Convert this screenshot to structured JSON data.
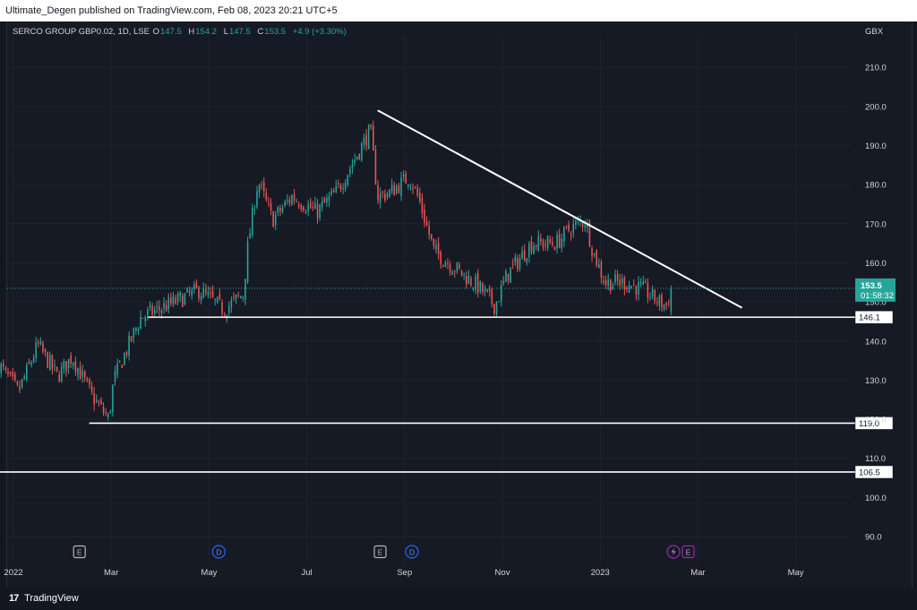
{
  "header": {
    "publish_text": "Ultimate_Degen published on TradingView.com, Feb 08, 2023 20:21 UTC+5"
  },
  "legend": {
    "symbol": "SERCO GROUP GBP0.02, 1D, LSE",
    "open_label": "O",
    "open": "147.5",
    "high_label": "H",
    "high": "154.2",
    "low_label": "L",
    "low": "147.5",
    "close_label": "C",
    "close": "153.5",
    "change": "+4.9 (+3.30%)"
  },
  "currency": "GBX",
  "footer": {
    "logo": "17",
    "brand": "TradingView"
  },
  "colors": {
    "up": "#26a69a",
    "down": "#ef5350",
    "background": "#161a25",
    "line": "#ffffff"
  },
  "chart_data": {
    "type": "candlestick",
    "symbol": "SERCO GROUP GBP0.02",
    "interval": "1D",
    "exchange": "LSE",
    "currency": "GBX",
    "ylim": [
      86,
      218
    ],
    "y_ticks": [
      "90.0",
      "100.0",
      "110.0",
      "120.0",
      "130.0",
      "140.0",
      "150.0",
      "160.0",
      "170.0",
      "180.0",
      "190.0",
      "200.0",
      "210.0"
    ],
    "x_ticks": [
      {
        "label": "2022",
        "month": 0
      },
      {
        "label": "Mar",
        "month": 2
      },
      {
        "label": "May",
        "month": 4
      },
      {
        "label": "Jul",
        "month": 6
      },
      {
        "label": "Sep",
        "month": 8
      },
      {
        "label": "Nov",
        "month": 10
      },
      {
        "label": "2023",
        "month": 12
      },
      {
        "label": "Mar",
        "month": 14
      },
      {
        "label": "May",
        "month": 16
      }
    ],
    "price_path": [
      [
        -0.3,
        134
      ],
      [
        0.1,
        127
      ],
      [
        0.5,
        139
      ],
      [
        0.9,
        131
      ],
      [
        1.2,
        136
      ],
      [
        1.6,
        126
      ],
      [
        1.95,
        120
      ],
      [
        2.05,
        130
      ],
      [
        2.6,
        146
      ],
      [
        3.3,
        150
      ],
      [
        3.8,
        153
      ],
      [
        4.3,
        148
      ],
      [
        4.7,
        152
      ],
      [
        4.8,
        165
      ],
      [
        5.0,
        181
      ],
      [
        5.3,
        171
      ],
      [
        5.7,
        177
      ],
      [
        6.2,
        173
      ],
      [
        6.6,
        178
      ],
      [
        7.0,
        187
      ],
      [
        7.3,
        194
      ],
      [
        7.45,
        177
      ],
      [
        7.7,
        178
      ],
      [
        8.1,
        182
      ],
      [
        8.3,
        176
      ],
      [
        8.6,
        163
      ],
      [
        9.0,
        159
      ],
      [
        9.5,
        154
      ],
      [
        9.85,
        149
      ],
      [
        10.1,
        157
      ],
      [
        10.6,
        165
      ],
      [
        11.1,
        165
      ],
      [
        11.4,
        169
      ],
      [
        11.7,
        171
      ],
      [
        11.85,
        163
      ],
      [
        12.1,
        155
      ],
      [
        12.5,
        155
      ],
      [
        12.9,
        153
      ],
      [
        13.2,
        150
      ],
      [
        13.35,
        149
      ],
      [
        13.45,
        153.5
      ]
    ],
    "current_price": "153.5",
    "countdown": "01:58:32",
    "trendline": {
      "from": {
        "month": 7.45,
        "price": 199
      },
      "to": {
        "month": 14.9,
        "price": 148.5
      }
    },
    "horizontal_lines": [
      {
        "label": "146.1",
        "price": 146.1,
        "from_month": 2.75
      },
      {
        "label": "119.0",
        "price": 119.0,
        "from_month": 1.55
      },
      {
        "label": "106.5",
        "price": 106.5,
        "from_month": -0.3
      }
    ],
    "events": [
      {
        "type": "E",
        "month": 1.35
      },
      {
        "type": "D",
        "month": 4.2
      },
      {
        "type": "E",
        "month": 7.5
      },
      {
        "type": "D",
        "month": 8.15
      },
      {
        "type": "split",
        "month": 13.5
      },
      {
        "type": "E",
        "month": 13.8
      }
    ]
  }
}
